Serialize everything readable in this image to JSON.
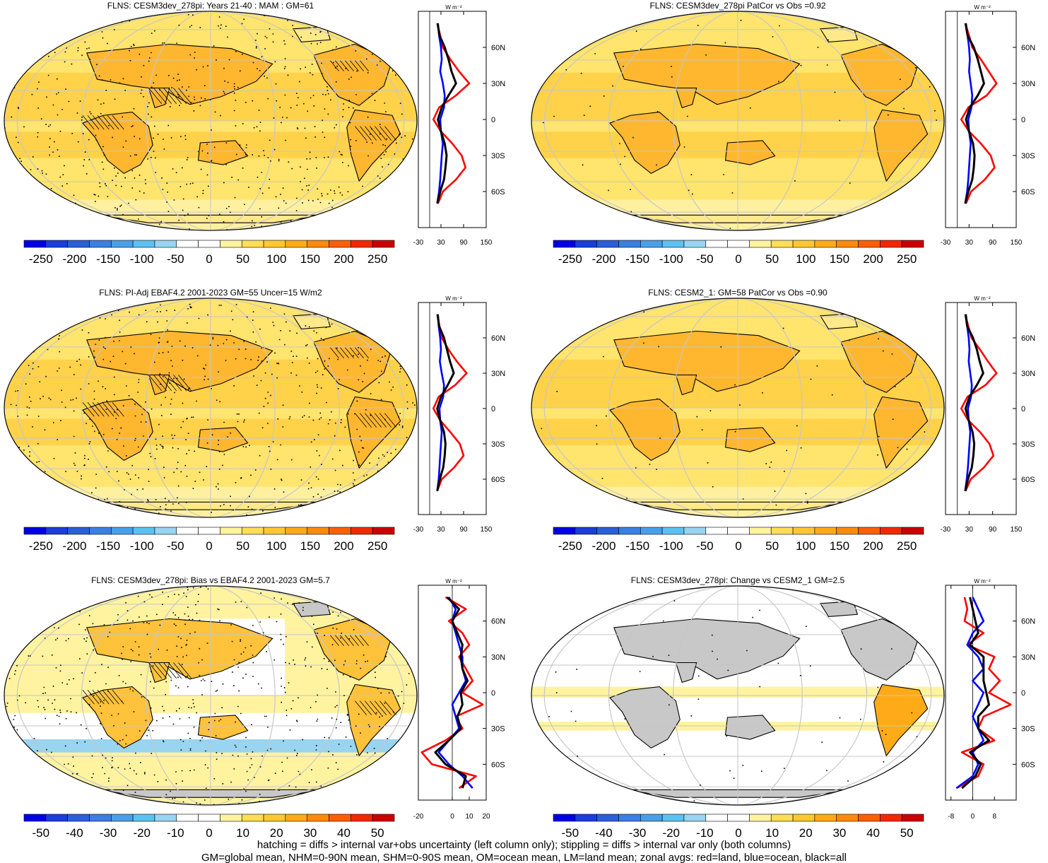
{
  "chart_data": [
    {
      "type": "heatmap",
      "title": "FLNS: CESM3dev_278pi: Years 21-40 : MAM : GM=61",
      "colorbar_ticks": [
        "-250",
        "-200",
        "-150",
        "-100",
        "-50",
        "0",
        "50",
        "100",
        "150",
        "200",
        "250"
      ],
      "colorbar_range": [
        -275,
        275
      ],
      "field_kind": "abs",
      "overlay": "hatch+stipple"
    },
    {
      "type": "line",
      "unit_label": "W m⁻²",
      "x_ticks": [
        "-30",
        "30",
        "90",
        "150"
      ],
      "xlim": [
        -30,
        150
      ],
      "y_ticks": [
        "60N",
        "30N",
        "0",
        "30S",
        "60S"
      ],
      "ylim": [
        -90,
        90
      ],
      "series": [
        {
          "color": "#ff0000",
          "lat": [
            80,
            70,
            60,
            50,
            40,
            30,
            20,
            10,
            0,
            -10,
            -20,
            -30,
            -40,
            -50,
            -60,
            -70
          ],
          "values": [
            20,
            28,
            35,
            55,
            78,
            105,
            70,
            25,
            10,
            30,
            60,
            85,
            95,
            70,
            35,
            22
          ]
        },
        {
          "color": "#0000ff",
          "lat": [
            80,
            70,
            60,
            50,
            40,
            30,
            20,
            10,
            0,
            -10,
            -20,
            -30,
            -40,
            -50,
            -60,
            -70
          ],
          "values": [
            22,
            25,
            30,
            32,
            28,
            35,
            40,
            38,
            28,
            30,
            35,
            32,
            30,
            28,
            25,
            20
          ]
        },
        {
          "color": "#000000",
          "lat": [
            80,
            70,
            60,
            50,
            40,
            30,
            20,
            10,
            0,
            -10,
            -20,
            -30,
            -40,
            -50,
            -60,
            -70
          ],
          "values": [
            21,
            26,
            40,
            50,
            58,
            70,
            50,
            32,
            22,
            30,
            40,
            45,
            42,
            38,
            28,
            20
          ]
        }
      ]
    },
    {
      "type": "heatmap",
      "title": "FLNS: CESM3dev_278pi PatCor vs Obs =0.92",
      "colorbar_ticks": [
        "-250",
        "-200",
        "-150",
        "-100",
        "-50",
        "0",
        "50",
        "100",
        "150",
        "200",
        "250"
      ],
      "colorbar_range": [
        -275,
        275
      ],
      "field_kind": "abs",
      "overlay": "stipple-light"
    },
    {
      "type": "line",
      "unit_label": "W m⁻²",
      "x_ticks": [
        "-30",
        "30",
        "90",
        "150"
      ],
      "xlim": [
        -30,
        150
      ],
      "y_ticks": [
        "60N",
        "30N",
        "0",
        "30S",
        "60S"
      ],
      "ylim": [
        -90,
        90
      ],
      "series": [
        {
          "color": "#ff0000",
          "lat": [
            80,
            70,
            60,
            50,
            40,
            30,
            20,
            10,
            0,
            -10,
            -20,
            -30,
            -40,
            -50,
            -60,
            -70
          ],
          "values": [
            20,
            30,
            38,
            60,
            80,
            100,
            75,
            28,
            10,
            30,
            60,
            85,
            95,
            70,
            35,
            22
          ]
        },
        {
          "color": "#0000ff",
          "lat": [
            80,
            70,
            60,
            50,
            40,
            30,
            20,
            10,
            0,
            -10,
            -20,
            -30,
            -40,
            -50,
            -60,
            -70
          ],
          "values": [
            22,
            26,
            30,
            32,
            30,
            34,
            38,
            36,
            28,
            30,
            34,
            32,
            30,
            28,
            25,
            20
          ]
        },
        {
          "color": "#000000",
          "lat": [
            80,
            70,
            60,
            50,
            40,
            30,
            20,
            10,
            0,
            -10,
            -20,
            -30,
            -40,
            -50,
            -60,
            -70
          ],
          "values": [
            21,
            26,
            42,
            52,
            60,
            68,
            52,
            32,
            22,
            30,
            40,
            44,
            42,
            38,
            28,
            20
          ]
        }
      ]
    },
    {
      "type": "heatmap",
      "title": "FLNS: PI-Adj EBAF4.2 2001-2023 GM=55 Uncer=15 W/m2",
      "colorbar_ticks": [
        "-250",
        "-200",
        "-150",
        "-100",
        "-50",
        "0",
        "50",
        "100",
        "150",
        "200",
        "250"
      ],
      "colorbar_range": [
        -275,
        275
      ],
      "field_kind": "abs",
      "overlay": "hatch+stipple"
    },
    {
      "type": "line",
      "unit_label": "W m⁻²",
      "x_ticks": [
        "-30",
        "30",
        "90",
        "150"
      ],
      "xlim": [
        -30,
        150
      ],
      "y_ticks": [
        "60N",
        "30N",
        "0",
        "30S",
        "60S"
      ],
      "ylim": [
        -90,
        90
      ],
      "series": [
        {
          "color": "#ff0000",
          "lat": [
            80,
            70,
            60,
            50,
            40,
            30,
            20,
            10,
            0,
            -10,
            -20,
            -30,
            -40,
            -50,
            -60,
            -70
          ],
          "values": [
            20,
            26,
            32,
            50,
            72,
            98,
            68,
            24,
            10,
            28,
            55,
            80,
            90,
            65,
            32,
            20
          ]
        },
        {
          "color": "#0000ff",
          "lat": [
            80,
            70,
            60,
            50,
            40,
            30,
            20,
            10,
            0,
            -10,
            -20,
            -30,
            -40,
            -50,
            -60,
            -70
          ],
          "values": [
            22,
            24,
            28,
            30,
            27,
            32,
            38,
            36,
            26,
            28,
            32,
            30,
            28,
            26,
            24,
            20
          ]
        },
        {
          "color": "#000000",
          "lat": [
            80,
            70,
            60,
            50,
            40,
            30,
            20,
            10,
            0,
            -10,
            -20,
            -30,
            -40,
            -50,
            -60,
            -70
          ],
          "values": [
            21,
            25,
            38,
            46,
            54,
            64,
            48,
            30,
            20,
            28,
            38,
            42,
            40,
            36,
            27,
            20
          ]
        }
      ]
    },
    {
      "type": "heatmap",
      "title": "FLNS: CESM2_1: GM=58 PatCor vs Obs =0.90",
      "colorbar_ticks": [
        "-250",
        "-200",
        "-150",
        "-100",
        "-50",
        "0",
        "50",
        "100",
        "150",
        "200",
        "250"
      ],
      "colorbar_range": [
        -275,
        275
      ],
      "field_kind": "abs",
      "overlay": "stipple-light"
    },
    {
      "type": "line",
      "unit_label": "W m⁻²",
      "x_ticks": [
        "-30",
        "30",
        "90",
        "150"
      ],
      "xlim": [
        -30,
        150
      ],
      "y_ticks": [
        "60N",
        "30N",
        "0",
        "30S",
        "60S"
      ],
      "ylim": [
        -90,
        90
      ],
      "series": [
        {
          "color": "#ff0000",
          "lat": [
            80,
            70,
            60,
            50,
            40,
            30,
            20,
            10,
            0,
            -10,
            -20,
            -30,
            -40,
            -50,
            -60,
            -70
          ],
          "values": [
            20,
            28,
            36,
            58,
            78,
            100,
            72,
            26,
            10,
            28,
            58,
            82,
            92,
            68,
            34,
            21
          ]
        },
        {
          "color": "#0000ff",
          "lat": [
            80,
            70,
            60,
            50,
            40,
            30,
            20,
            10,
            0,
            -10,
            -20,
            -30,
            -40,
            -50,
            -60,
            -70
          ],
          "values": [
            22,
            25,
            29,
            31,
            29,
            33,
            37,
            35,
            27,
            29,
            33,
            31,
            29,
            27,
            24,
            20
          ]
        },
        {
          "color": "#000000",
          "lat": [
            80,
            70,
            60,
            50,
            40,
            30,
            20,
            10,
            0,
            -10,
            -20,
            -30,
            -40,
            -50,
            -60,
            -70
          ],
          "values": [
            21,
            25,
            40,
            50,
            57,
            66,
            50,
            31,
            21,
            29,
            39,
            43,
            41,
            37,
            27,
            20
          ]
        }
      ]
    },
    {
      "type": "heatmap",
      "title": "FLNS: CESM3dev_278pi: Bias vs EBAF4.2 2001-2023 GM=5.7",
      "colorbar_ticks": [
        "-50",
        "-40",
        "-30",
        "-20",
        "-10",
        "0",
        "10",
        "20",
        "30",
        "40",
        "50"
      ],
      "colorbar_range": [
        -55,
        55
      ],
      "field_kind": "diff",
      "overlay": "hatch+stipple"
    },
    {
      "type": "line",
      "unit_label": "W m⁻²",
      "x_ticks": [
        "-20",
        "0",
        "10",
        "20"
      ],
      "xlim": [
        -20,
        20
      ],
      "y_ticks": [
        "60N",
        "30N",
        "0",
        "30S",
        "60S"
      ],
      "ylim": [
        -90,
        90
      ],
      "series": [
        {
          "color": "#ff0000",
          "lat": [
            80,
            70,
            60,
            50,
            40,
            30,
            20,
            10,
            0,
            -10,
            -20,
            -30,
            -40,
            -50,
            -60,
            -70,
            -80
          ],
          "values": [
            -4,
            8,
            -2,
            6,
            10,
            4,
            8,
            12,
            6,
            18,
            2,
            6,
            -4,
            -18,
            -12,
            14,
            4
          ]
        },
        {
          "color": "#0000ff",
          "lat": [
            80,
            70,
            60,
            50,
            40,
            30,
            20,
            10,
            0,
            -10,
            -20,
            -30,
            -40,
            -50,
            -60,
            -70,
            -80
          ],
          "values": [
            -2,
            2,
            0,
            2,
            4,
            6,
            6,
            8,
            4,
            0,
            2,
            4,
            -2,
            -8,
            -2,
            6,
            12
          ]
        },
        {
          "color": "#000000",
          "lat": [
            80,
            70,
            60,
            50,
            40,
            30,
            20,
            10,
            0,
            -10,
            -20,
            -30,
            -40,
            -50,
            -60,
            -70,
            -80
          ],
          "values": [
            -3,
            4,
            0,
            3,
            6,
            5,
            6,
            9,
            5,
            6,
            3,
            5,
            -2,
            -10,
            -4,
            8,
            6
          ]
        }
      ]
    },
    {
      "type": "heatmap",
      "title": "FLNS: CESM3dev_278pi: Change vs CESM2_1 GM=2.5",
      "colorbar_ticks": [
        "-50",
        "-40",
        "-30",
        "-20",
        "-10",
        "0",
        "10",
        "20",
        "30",
        "40",
        "50"
      ],
      "colorbar_range": [
        -55,
        55
      ],
      "field_kind": "change",
      "overlay": "stipple-light"
    },
    {
      "type": "line",
      "unit_label": "W m⁻²",
      "x_ticks": [
        "-8",
        "0",
        "8"
      ],
      "xlim": [
        -10,
        16
      ],
      "y_ticks": [
        "60N",
        "30N",
        "0",
        "30S",
        "60S"
      ],
      "ylim": [
        -90,
        90
      ],
      "series": [
        {
          "color": "#ff0000",
          "lat": [
            80,
            70,
            60,
            50,
            40,
            30,
            20,
            10,
            0,
            -10,
            -20,
            -30,
            -40,
            -50,
            -60,
            -70,
            -80
          ],
          "values": [
            -3,
            -2,
            -3,
            4,
            -2,
            8,
            6,
            10,
            6,
            14,
            4,
            2,
            8,
            -4,
            4,
            2,
            -6
          ]
        },
        {
          "color": "#0000ff",
          "lat": [
            80,
            70,
            60,
            50,
            40,
            30,
            20,
            10,
            0,
            -10,
            -20,
            -30,
            -40,
            -50,
            -60,
            -70,
            -80
          ],
          "values": [
            0,
            2,
            4,
            0,
            -2,
            2,
            4,
            0,
            4,
            2,
            0,
            2,
            4,
            0,
            2,
            0,
            -6
          ]
        },
        {
          "color": "#000000",
          "lat": [
            80,
            70,
            60,
            50,
            40,
            30,
            20,
            10,
            0,
            -10,
            -20,
            -30,
            -40,
            -50,
            -60,
            -70,
            -80
          ],
          "values": [
            -1,
            0,
            1,
            2,
            -1,
            4,
            4,
            4,
            5,
            6,
            2,
            2,
            6,
            -1,
            3,
            1,
            -4
          ]
        }
      ]
    }
  ],
  "colors": {
    "palette": [
      "#0000e6",
      "#1a3ddb",
      "#2b5fd9",
      "#3b7fe0",
      "#4aa0e8",
      "#5cc1f0",
      "#99d4f0",
      "#ffffff",
      "#ffffff",
      "#fff3a0",
      "#ffdd55",
      "#ffc830",
      "#ffab18",
      "#ff8a0a",
      "#ff5e05",
      "#f22803",
      "#cc0000"
    ],
    "land_missing": "#c8c8c8",
    "grid": "#c6c6c6"
  },
  "footer": {
    "line1": "hatching = diffs > internal var+obs uncertainty (left column only); stippling = diffs > internal var only (both columns)",
    "line2": "GM=global mean, NHM=0-90N mean, SHM=0-90S mean, OM=ocean mean, LM=land mean; zonal avgs: red=land, blue=ocean, black=all"
  }
}
